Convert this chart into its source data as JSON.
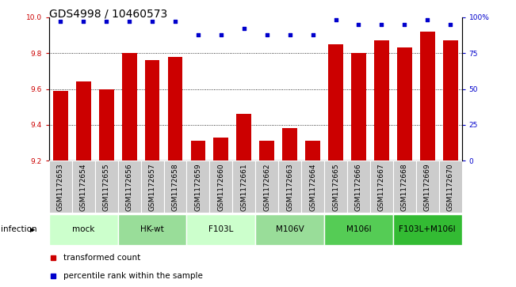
{
  "title": "GDS4998 / 10460573",
  "samples": [
    "GSM1172653",
    "GSM1172654",
    "GSM1172655",
    "GSM1172656",
    "GSM1172657",
    "GSM1172658",
    "GSM1172659",
    "GSM1172660",
    "GSM1172661",
    "GSM1172662",
    "GSM1172663",
    "GSM1172664",
    "GSM1172665",
    "GSM1172666",
    "GSM1172667",
    "GSM1172668",
    "GSM1172669",
    "GSM1172670"
  ],
  "bar_values": [
    9.59,
    9.64,
    9.6,
    9.8,
    9.76,
    9.78,
    9.31,
    9.33,
    9.46,
    9.31,
    9.38,
    9.31,
    9.85,
    9.8,
    9.87,
    9.83,
    9.92,
    9.87
  ],
  "dot_values": [
    97,
    97,
    97,
    97,
    97,
    97,
    88,
    88,
    92,
    88,
    88,
    88,
    98,
    95,
    95,
    95,
    98,
    95
  ],
  "groups": [
    {
      "label": "mock",
      "start": 0,
      "end": 2,
      "color": "#ccffcc"
    },
    {
      "label": "HK-wt",
      "start": 3,
      "end": 5,
      "color": "#99dd99"
    },
    {
      "label": "F103L",
      "start": 6,
      "end": 8,
      "color": "#ccffcc"
    },
    {
      "label": "M106V",
      "start": 9,
      "end": 11,
      "color": "#99dd99"
    },
    {
      "label": "M106I",
      "start": 12,
      "end": 14,
      "color": "#55cc55"
    },
    {
      "label": "F103L+M106I",
      "start": 15,
      "end": 17,
      "color": "#33bb33"
    }
  ],
  "ylim_left": [
    9.2,
    10.0
  ],
  "ylim_right": [
    0,
    100
  ],
  "yticks_left": [
    9.2,
    9.4,
    9.6,
    9.8,
    10.0
  ],
  "yticks_right": [
    0,
    25,
    50,
    75,
    100
  ],
  "bar_color": "#cc0000",
  "dot_color": "#0000cc",
  "background_color": "#ffffff",
  "tick_bg_color": "#cccccc",
  "xlabel_infection": "infection",
  "legend_bar": "transformed count",
  "legend_dot": "percentile rank within the sample",
  "title_fontsize": 10,
  "tick_fontsize": 6.5,
  "group_fontsize": 7.5,
  "legend_fontsize": 7.5
}
